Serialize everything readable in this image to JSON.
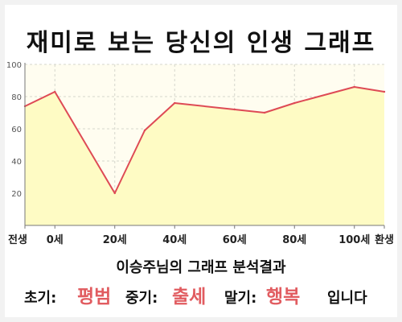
{
  "title": "재미로 보는 당신의 인생 그래프",
  "summary": "이승주님의 그래프 분석결과",
  "result": {
    "early_label": "초기:",
    "early_value": "평범",
    "mid_label": "중기:",
    "mid_value": "출세",
    "late_label": "말기:",
    "late_value": "행복",
    "ending": "입니다"
  },
  "colors": {
    "line": "#de4a55",
    "area": "#fefbc4",
    "plot_bg": "#fffdf0",
    "grid": "#d6d6cc",
    "accent": "#e15c60"
  },
  "chart_data": {
    "type": "area",
    "x": [
      -10,
      0,
      20,
      30,
      40,
      60,
      70,
      80,
      100,
      110
    ],
    "y": [
      74,
      83,
      20,
      59,
      76,
      72,
      70,
      76,
      86,
      83
    ],
    "xlim": [
      -10,
      110
    ],
    "ylim": [
      0,
      100
    ],
    "y_ticks": [
      20,
      40,
      60,
      80,
      100
    ],
    "x_ticks": [
      {
        "x": -10,
        "label": "전생"
      },
      {
        "x": 0,
        "label": "0세"
      },
      {
        "x": 20,
        "label": "20세"
      },
      {
        "x": 40,
        "label": "40세"
      },
      {
        "x": 60,
        "label": "60세"
      },
      {
        "x": 80,
        "label": "80세"
      },
      {
        "x": 100,
        "label": "100세"
      },
      {
        "x": 110,
        "label": "환생"
      }
    ],
    "grid": true
  }
}
